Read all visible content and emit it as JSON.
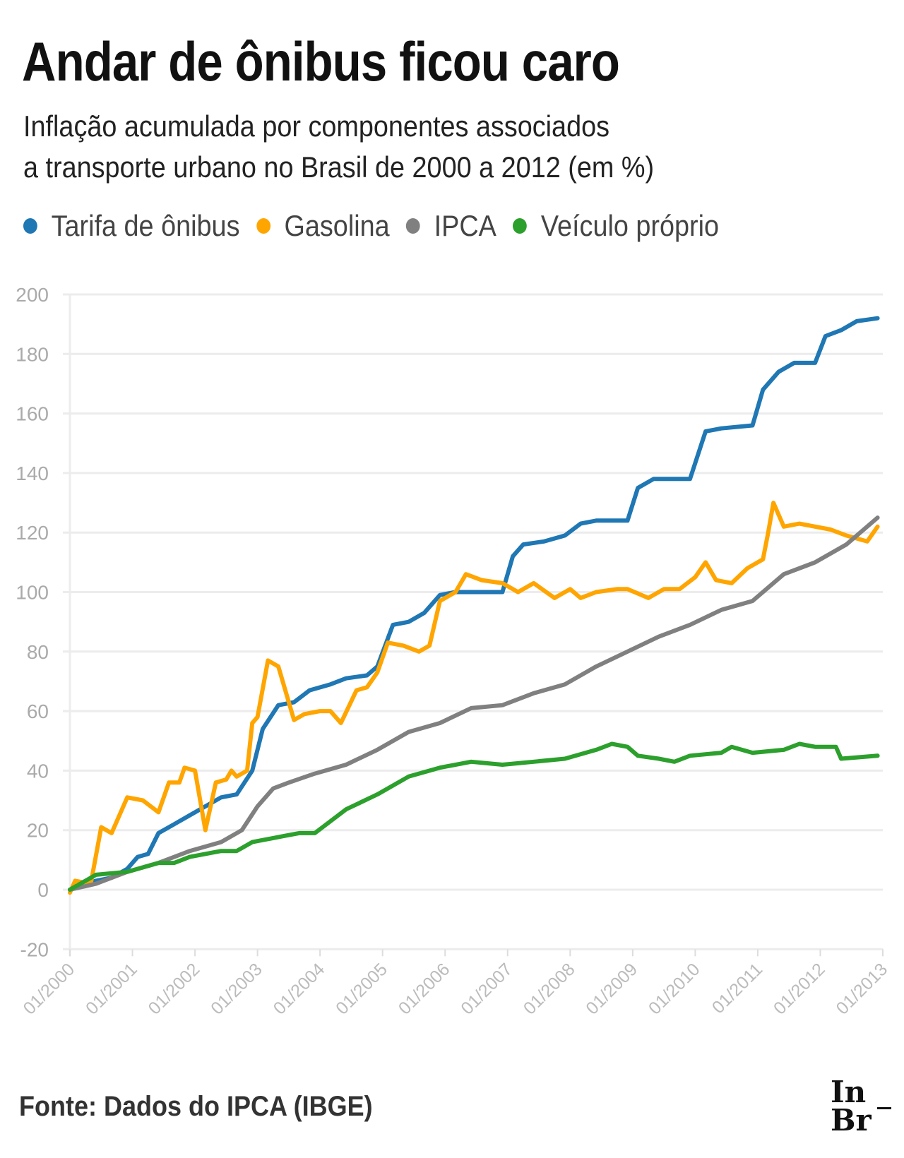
{
  "title": "Andar de ônibus ficou caro",
  "subtitle_lines": [
    "Inflação acumulada por componentes associados",
    "a transporte urbano no Brasil de 2000 a 2012 (em %)"
  ],
  "source": "Fonte: Dados do IPCA (IBGE)",
  "logo": {
    "line1": "In",
    "line2": "Br"
  },
  "chart_data": {
    "type": "line",
    "title": "Andar de ônibus ficou caro",
    "xlabel": "",
    "ylabel": "",
    "ylim": [
      -20,
      200
    ],
    "xlim": [
      "2000-01",
      "2013-01"
    ],
    "grid": true,
    "legend_position": "top",
    "y_ticks": [
      "200",
      "180",
      "160",
      "140",
      "120",
      "100",
      "80",
      "60",
      "40",
      "20",
      "0",
      "-20"
    ],
    "x_ticks": [
      "01/2000",
      "01/2001",
      "01/2002",
      "01/2003",
      "01/2004",
      "01/2005",
      "01/2006",
      "01/2007",
      "01/2008",
      "01/2009",
      "01/2010",
      "01/2011",
      "01/2012",
      "01/2013"
    ],
    "series": [
      {
        "name": "Tarifa de ônibus",
        "color": "#1f77b4",
        "points": [
          [
            "2000-01",
            0
          ],
          [
            "2000-06",
            3
          ],
          [
            "2000-09",
            4
          ],
          [
            "2000-12",
            7
          ],
          [
            "2001-02",
            11
          ],
          [
            "2001-04",
            12
          ],
          [
            "2001-06",
            19
          ],
          [
            "2001-09",
            22
          ],
          [
            "2001-12",
            25
          ],
          [
            "2002-03",
            28
          ],
          [
            "2002-06",
            31
          ],
          [
            "2002-09",
            32
          ],
          [
            "2002-12",
            40
          ],
          [
            "2003-02",
            54
          ],
          [
            "2003-05",
            62
          ],
          [
            "2003-08",
            63
          ],
          [
            "2003-11",
            67
          ],
          [
            "2004-03",
            69
          ],
          [
            "2004-06",
            71
          ],
          [
            "2004-10",
            72
          ],
          [
            "2004-12",
            75
          ],
          [
            "2005-03",
            89
          ],
          [
            "2005-06",
            90
          ],
          [
            "2005-09",
            93
          ],
          [
            "2005-12",
            99
          ],
          [
            "2006-03",
            100
          ],
          [
            "2006-12",
            100
          ],
          [
            "2007-02",
            112
          ],
          [
            "2007-04",
            116
          ],
          [
            "2007-08",
            117
          ],
          [
            "2007-12",
            119
          ],
          [
            "2008-03",
            123
          ],
          [
            "2008-06",
            124
          ],
          [
            "2008-12",
            124
          ],
          [
            "2009-02",
            135
          ],
          [
            "2009-05",
            138
          ],
          [
            "2009-12",
            138
          ],
          [
            "2010-03",
            154
          ],
          [
            "2010-06",
            155
          ],
          [
            "2010-12",
            156
          ],
          [
            "2011-02",
            168
          ],
          [
            "2011-05",
            174
          ],
          [
            "2011-08",
            177
          ],
          [
            "2011-12",
            177
          ],
          [
            "2012-02",
            186
          ],
          [
            "2012-05",
            188
          ],
          [
            "2012-08",
            191
          ],
          [
            "2012-12",
            192
          ]
        ]
      },
      {
        "name": "Gasolina",
        "color": "#ffa500",
        "points": [
          [
            "2000-01",
            -1
          ],
          [
            "2000-02",
            3
          ],
          [
            "2000-05",
            2
          ],
          [
            "2000-07",
            21
          ],
          [
            "2000-09",
            19
          ],
          [
            "2000-12",
            31
          ],
          [
            "2001-03",
            30
          ],
          [
            "2001-06",
            26
          ],
          [
            "2001-08",
            36
          ],
          [
            "2001-10",
            36
          ],
          [
            "2001-11",
            41
          ],
          [
            "2002-01",
            40
          ],
          [
            "2002-03",
            20
          ],
          [
            "2002-05",
            36
          ],
          [
            "2002-07",
            37
          ],
          [
            "2002-08",
            40
          ],
          [
            "2002-09",
            38
          ],
          [
            "2002-11",
            40
          ],
          [
            "2002-12",
            56
          ],
          [
            "2003-01",
            58
          ],
          [
            "2003-03",
            77
          ],
          [
            "2003-05",
            75
          ],
          [
            "2003-08",
            57
          ],
          [
            "2003-10",
            59
          ],
          [
            "2004-01",
            60
          ],
          [
            "2004-03",
            60
          ],
          [
            "2004-05",
            56
          ],
          [
            "2004-08",
            67
          ],
          [
            "2004-10",
            68
          ],
          [
            "2004-12",
            73
          ],
          [
            "2005-02",
            83
          ],
          [
            "2005-05",
            82
          ],
          [
            "2005-08",
            80
          ],
          [
            "2005-10",
            82
          ],
          [
            "2005-12",
            97
          ],
          [
            "2006-03",
            100
          ],
          [
            "2006-05",
            106
          ],
          [
            "2006-08",
            104
          ],
          [
            "2006-12",
            103
          ],
          [
            "2007-03",
            100
          ],
          [
            "2007-06",
            103
          ],
          [
            "2007-10",
            98
          ],
          [
            "2008-01",
            101
          ],
          [
            "2008-03",
            98
          ],
          [
            "2008-06",
            100
          ],
          [
            "2008-10",
            101
          ],
          [
            "2008-12",
            101
          ],
          [
            "2009-04",
            98
          ],
          [
            "2009-07",
            101
          ],
          [
            "2009-10",
            101
          ],
          [
            "2010-01",
            105
          ],
          [
            "2010-03",
            110
          ],
          [
            "2010-05",
            104
          ],
          [
            "2010-08",
            103
          ],
          [
            "2010-11",
            108
          ],
          [
            "2011-02",
            111
          ],
          [
            "2011-03",
            120
          ],
          [
            "2011-04",
            130
          ],
          [
            "2011-06",
            122
          ],
          [
            "2011-09",
            123
          ],
          [
            "2011-12",
            122
          ],
          [
            "2012-03",
            121
          ],
          [
            "2012-06",
            119
          ],
          [
            "2012-10",
            117
          ],
          [
            "2012-12",
            122
          ]
        ]
      },
      {
        "name": "IPCA",
        "color": "#808080",
        "points": [
          [
            "2000-01",
            0
          ],
          [
            "2000-06",
            2
          ],
          [
            "2000-12",
            6
          ],
          [
            "2001-06",
            9
          ],
          [
            "2001-12",
            13
          ],
          [
            "2002-06",
            16
          ],
          [
            "2002-10",
            20
          ],
          [
            "2003-01",
            28
          ],
          [
            "2003-04",
            34
          ],
          [
            "2003-07",
            36
          ],
          [
            "2003-12",
            39
          ],
          [
            "2004-06",
            42
          ],
          [
            "2004-12",
            47
          ],
          [
            "2005-06",
            53
          ],
          [
            "2005-12",
            56
          ],
          [
            "2006-06",
            61
          ],
          [
            "2006-12",
            62
          ],
          [
            "2007-06",
            66
          ],
          [
            "2007-12",
            69
          ],
          [
            "2008-06",
            75
          ],
          [
            "2008-12",
            80
          ],
          [
            "2009-06",
            85
          ],
          [
            "2009-12",
            89
          ],
          [
            "2010-06",
            94
          ],
          [
            "2010-12",
            97
          ],
          [
            "2011-06",
            106
          ],
          [
            "2011-12",
            110
          ],
          [
            "2012-06",
            116
          ],
          [
            "2012-12",
            125
          ]
        ]
      },
      {
        "name": "Veículo próprio",
        "color": "#2ca02c",
        "points": [
          [
            "2000-01",
            0
          ],
          [
            "2000-06",
            5
          ],
          [
            "2000-12",
            6
          ],
          [
            "2001-06",
            9
          ],
          [
            "2001-09",
            9
          ],
          [
            "2001-12",
            11
          ],
          [
            "2002-06",
            13
          ],
          [
            "2002-09",
            13
          ],
          [
            "2002-12",
            16
          ],
          [
            "2003-06",
            18
          ],
          [
            "2003-09",
            19
          ],
          [
            "2003-12",
            19
          ],
          [
            "2004-06",
            27
          ],
          [
            "2004-12",
            32
          ],
          [
            "2005-06",
            38
          ],
          [
            "2005-12",
            41
          ],
          [
            "2006-06",
            43
          ],
          [
            "2006-12",
            42
          ],
          [
            "2007-06",
            43
          ],
          [
            "2007-12",
            44
          ],
          [
            "2008-06",
            47
          ],
          [
            "2008-09",
            49
          ],
          [
            "2008-12",
            48
          ],
          [
            "2009-02",
            45
          ],
          [
            "2009-06",
            44
          ],
          [
            "2009-09",
            43
          ],
          [
            "2009-12",
            45
          ],
          [
            "2010-06",
            46
          ],
          [
            "2010-08",
            48
          ],
          [
            "2010-12",
            46
          ],
          [
            "2011-06",
            47
          ],
          [
            "2011-09",
            49
          ],
          [
            "2011-12",
            48
          ],
          [
            "2012-04",
            48
          ],
          [
            "2012-05",
            44
          ],
          [
            "2012-12",
            45
          ]
        ]
      }
    ]
  }
}
